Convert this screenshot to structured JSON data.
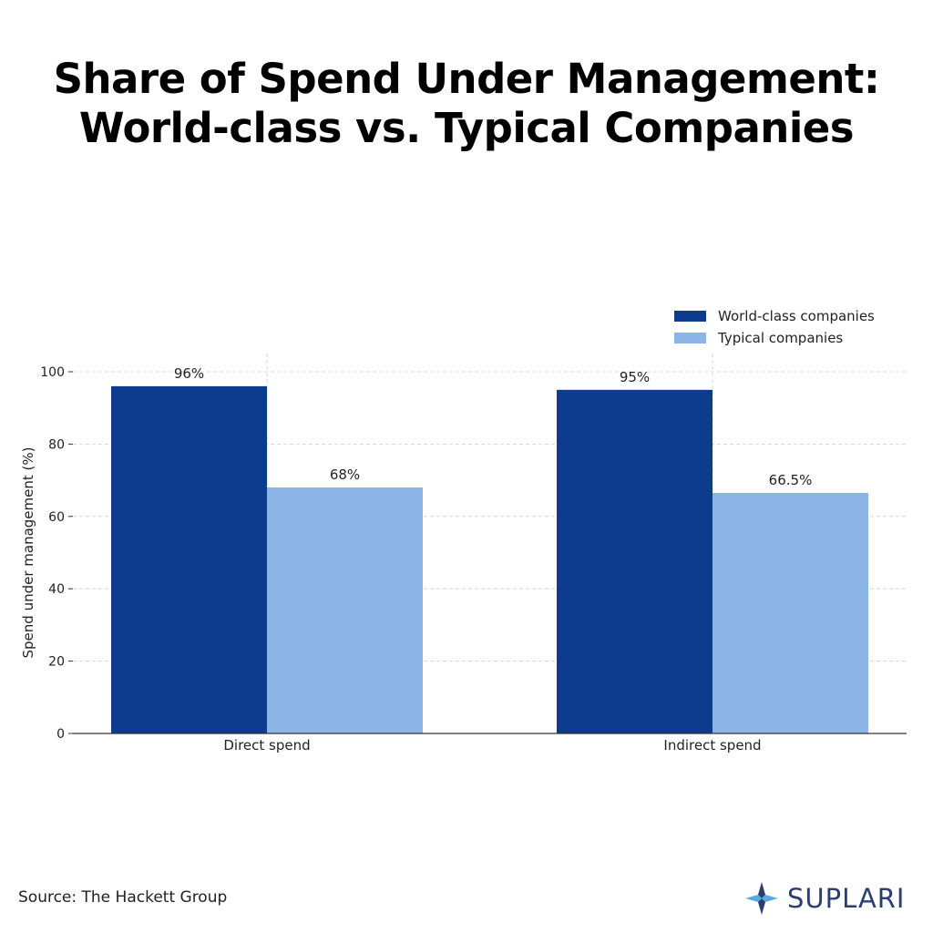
{
  "header": {
    "title_line1": "Share of Spend Under Management:",
    "title_line2": "World-class vs. Typical Companies"
  },
  "footer": {
    "source": "Source: The Hackett Group",
    "brand": "SUPLARI"
  },
  "colors": {
    "world_class": "#0d3b8e",
    "typical": "#8db4e6",
    "grid": "#cccccc",
    "brand_dark": "#2c3e70",
    "brand_light": "#5aa8e0"
  },
  "icons": {
    "brand_logo": "suplari-star-icon"
  },
  "chart_data": {
    "type": "bar",
    "categories": [
      "Direct spend",
      "Indirect spend"
    ],
    "series": [
      {
        "name": "World-class companies",
        "values": [
          96,
          95
        ],
        "labels": [
          "96%",
          "95%"
        ]
      },
      {
        "name": "Typical companies",
        "values": [
          68,
          66.5
        ],
        "labels": [
          "68%",
          "66.5%"
        ]
      }
    ],
    "ylabel": "Spend under management (%)",
    "xlabel": "",
    "ylim": [
      0,
      100
    ],
    "yticks": [
      0,
      20,
      40,
      60,
      80,
      100
    ],
    "grid": true,
    "legend_position": "top-right"
  }
}
